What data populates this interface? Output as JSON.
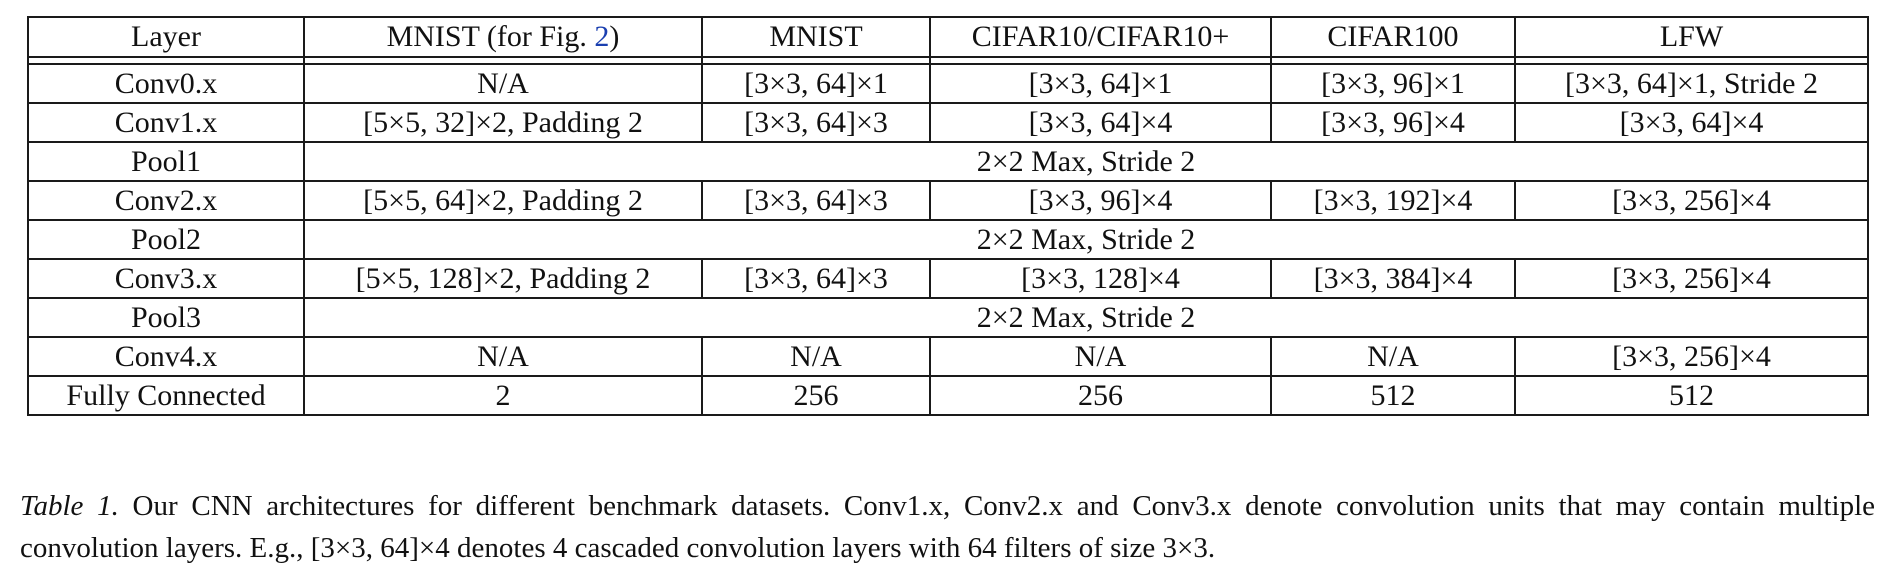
{
  "table": {
    "headers": [
      {
        "text": "Layer"
      },
      {
        "prefix": "MNIST (for Fig. ",
        "link": "2",
        "suffix": ")"
      },
      {
        "text": "MNIST"
      },
      {
        "text": "CIFAR10/CIFAR10+"
      },
      {
        "text": "CIFAR100"
      },
      {
        "text": "LFW"
      }
    ],
    "rows": [
      {
        "layer": "Conv0.x",
        "cells": [
          "N/A",
          "[3×3, 64]×1",
          "[3×3, 64]×1",
          "[3×3, 96]×1",
          "[3×3, 64]×1, Stride 2"
        ]
      },
      {
        "layer": "Conv1.x",
        "cells": [
          "[5×5, 32]×2, Padding 2",
          "[3×3, 64]×3",
          "[3×3, 64]×4",
          "[3×3, 96]×4",
          "[3×3, 64]×4"
        ]
      },
      {
        "layer": "Pool1",
        "span": "2×2 Max, Stride 2"
      },
      {
        "layer": "Conv2.x",
        "cells": [
          "[5×5, 64]×2, Padding 2",
          "[3×3, 64]×3",
          "[3×3, 96]×4",
          "[3×3, 192]×4",
          "[3×3, 256]×4"
        ]
      },
      {
        "layer": "Pool2",
        "span": "2×2 Max, Stride 2"
      },
      {
        "layer": "Conv3.x",
        "cells": [
          "[5×5, 128]×2, Padding 2",
          "[3×3, 64]×3",
          "[3×3, 128]×4",
          "[3×3, 384]×4",
          "[3×3, 256]×4"
        ]
      },
      {
        "layer": "Pool3",
        "span": "2×2 Max, Stride 2"
      },
      {
        "layer": "Conv4.x",
        "cells": [
          "N/A",
          "N/A",
          "N/A",
          "N/A",
          "[3×3, 256]×4"
        ]
      },
      {
        "layer": "Fully Connected",
        "cells": [
          "2",
          "256",
          "256",
          "512",
          "512"
        ]
      }
    ]
  },
  "caption": {
    "label": "Table 1.",
    "text": " Our CNN architectures for different benchmark datasets.  Conv1.x, Conv2.x and Conv3.x denote convolution units that may contain multiple convolution layers. E.g., [3×3, 64]×4 denotes 4 cascaded convolution layers with 64 filters of size 3×3."
  },
  "colors": {
    "text": "#111111",
    "border": "#1a1a1a",
    "link": "#1a3fb0",
    "background": "#ffffff"
  }
}
